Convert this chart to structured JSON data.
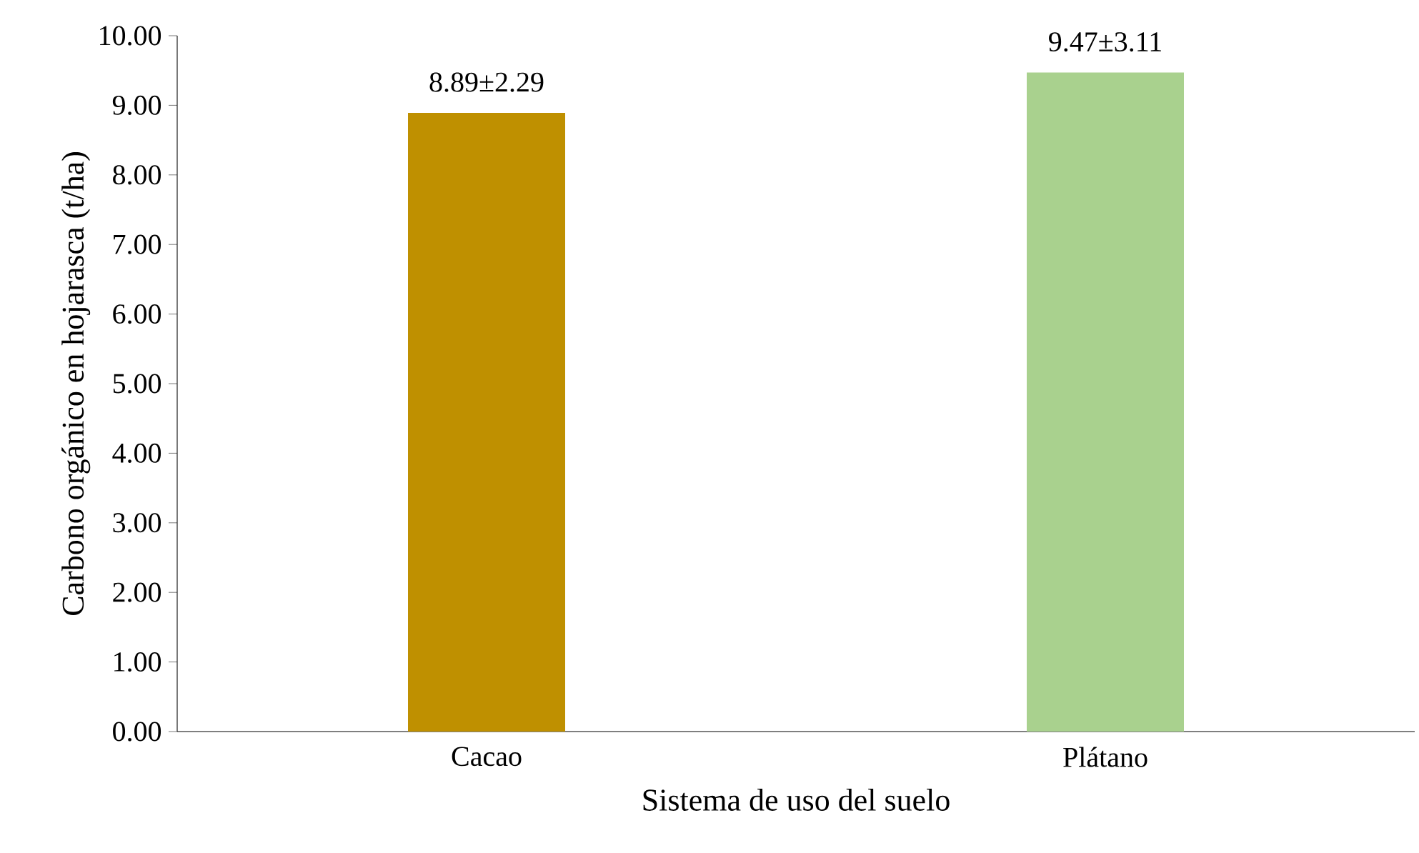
{
  "chart_data": {
    "type": "bar",
    "xlabel": "Sistema de uso del suelo",
    "ylabel": "Carbono orgánico en hojarasca (t/ha)",
    "categories": [
      "Cacao",
      "Plátano"
    ],
    "values": [
      8.89,
      9.47
    ],
    "colors": [
      "#bf9000",
      "#a9d18e"
    ],
    "value_labels": [
      "8.89±2.29",
      "9.47±3.11"
    ],
    "ylim": [
      0,
      10
    ],
    "yticks": [
      {
        "value": 0,
        "label": "0.00"
      },
      {
        "value": 1,
        "label": "1.00"
      },
      {
        "value": 2,
        "label": "2.00"
      },
      {
        "value": 3,
        "label": "3.00"
      },
      {
        "value": 4,
        "label": "4.00"
      },
      {
        "value": 5,
        "label": "5.00"
      },
      {
        "value": 6,
        "label": "6.00"
      },
      {
        "value": 7,
        "label": "7.00"
      },
      {
        "value": 8,
        "label": "8.00"
      },
      {
        "value": 9,
        "label": "9.00"
      },
      {
        "value": 10,
        "label": "10.00"
      }
    ],
    "grid": false
  }
}
